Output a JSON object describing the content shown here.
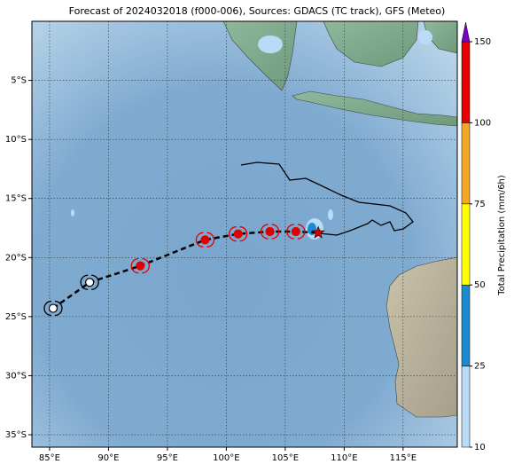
{
  "chart_data": {
    "type": "map",
    "title": "Forecast of 2024032018 (f000-006), Sources: GDACS (TC track), GFS (Meteo)",
    "xlim": [
      83.5,
      119.6
    ],
    "ylim": [
      -36.05,
      0
    ],
    "xticks": [
      {
        "value": 85,
        "label": "85°E"
      },
      {
        "value": 90,
        "label": "90°E"
      },
      {
        "value": 95,
        "label": "95°E"
      },
      {
        "value": 100,
        "label": "100°E"
      },
      {
        "value": 105,
        "label": "105°E"
      },
      {
        "value": 110,
        "label": "110°E"
      },
      {
        "value": 115,
        "label": "115°E"
      }
    ],
    "yticks": [
      {
        "value": -5,
        "label": "5°S"
      },
      {
        "value": -10,
        "label": "10°S"
      },
      {
        "value": -15,
        "label": "15°S"
      },
      {
        "value": -20,
        "label": "20°S"
      },
      {
        "value": -25,
        "label": "25°S"
      },
      {
        "value": -30,
        "label": "30°S"
      },
      {
        "value": -35,
        "label": "35°S"
      }
    ],
    "grid": true,
    "track": {
      "lon": [
        85.3,
        88.4,
        92.7,
        98.2,
        101.0,
        103.7,
        105.9,
        107.8
      ],
      "lat": [
        -24.3,
        -22.1,
        -20.7,
        -18.5,
        -18.0,
        -17.8,
        -17.8,
        -17.9
      ],
      "point_colors": [
        "#ffffff",
        "#ffffff",
        "#e00000",
        "#e00000",
        "#e00000",
        "#e00000",
        "#e00000",
        "#e00000"
      ],
      "color": "#000000"
    },
    "colorbar": {
      "label": "Total Precipitation (mm/6h)",
      "ticks": [
        10,
        25,
        50,
        75,
        100,
        150
      ],
      "colors": [
        "#b8dcf8",
        "#1b8ad3",
        "#ffff00",
        "#f5a623",
        "#e60000"
      ],
      "extend_color": "#7a00c4"
    }
  }
}
